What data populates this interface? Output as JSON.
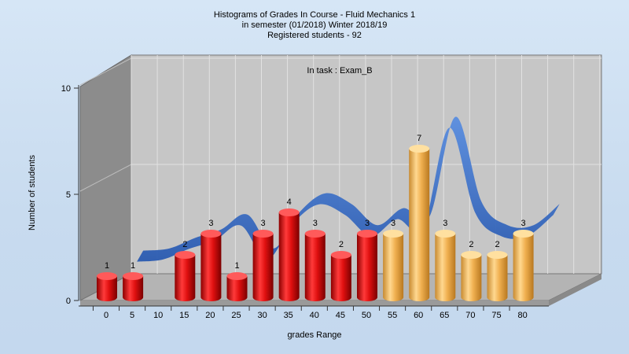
{
  "chart_data": {
    "type": "bar",
    "title_lines": [
      "Histograms of Grades  In Course - Fluid Mechanics 1",
      "in semester  (01/2018) Winter 2018/19",
      "Registered students - 92"
    ],
    "annotation": "In task : Exam_B",
    "xlabel": "grades Range",
    "ylabel": "Number of students",
    "ylim": [
      0,
      10
    ],
    "yticks": [
      0,
      5,
      10
    ],
    "x_ticks": [
      "0",
      "5",
      "10",
      "15",
      "20",
      "25",
      "30",
      "35",
      "40",
      "45",
      "50",
      "55",
      "60",
      "65",
      "70",
      "75",
      "80"
    ],
    "bars": [
      {
        "x": 0,
        "value": 1,
        "color": "red"
      },
      {
        "x": 5,
        "value": 1,
        "color": "red"
      },
      {
        "x": 15,
        "value": 2,
        "color": "red"
      },
      {
        "x": 20,
        "value": 3,
        "color": "red"
      },
      {
        "x": 25,
        "value": 1,
        "color": "red"
      },
      {
        "x": 30,
        "value": 3,
        "color": "red"
      },
      {
        "x": 35,
        "value": 4,
        "color": "red"
      },
      {
        "x": 40,
        "value": 3,
        "color": "red"
      },
      {
        "x": 45,
        "value": 2,
        "color": "red"
      },
      {
        "x": 50,
        "value": 3,
        "color": "red"
      },
      {
        "x": 55,
        "value": 3,
        "color": "orange"
      },
      {
        "x": 60,
        "value": 7,
        "color": "orange"
      },
      {
        "x": 65,
        "value": 3,
        "color": "orange"
      },
      {
        "x": 70,
        "value": 2,
        "color": "orange"
      },
      {
        "x": 75,
        "value": 2,
        "color": "orange"
      },
      {
        "x": 80,
        "value": 3,
        "color": "orange"
      }
    ],
    "trend_line": {
      "x": [
        5,
        10,
        15,
        20,
        25,
        30,
        35,
        40,
        45,
        50,
        55,
        60,
        65,
        70,
        75,
        80,
        85
      ],
      "y": [
        1.2,
        1.3,
        1.8,
        2.2,
        2.9,
        1.3,
        3.0,
        3.9,
        3.4,
        2.4,
        3.2,
        2.8,
        7.5,
        3.5,
        2.4,
        2.4,
        3.4
      ]
    },
    "colors": {
      "red": "#e01010",
      "orange": "#f0b050",
      "trend": "#3a6fc4",
      "floor": "#b4b4b4",
      "back_wall": "#c6c6c6",
      "side_wall": "#8c8c8c"
    },
    "grid": true,
    "legend": "none"
  }
}
